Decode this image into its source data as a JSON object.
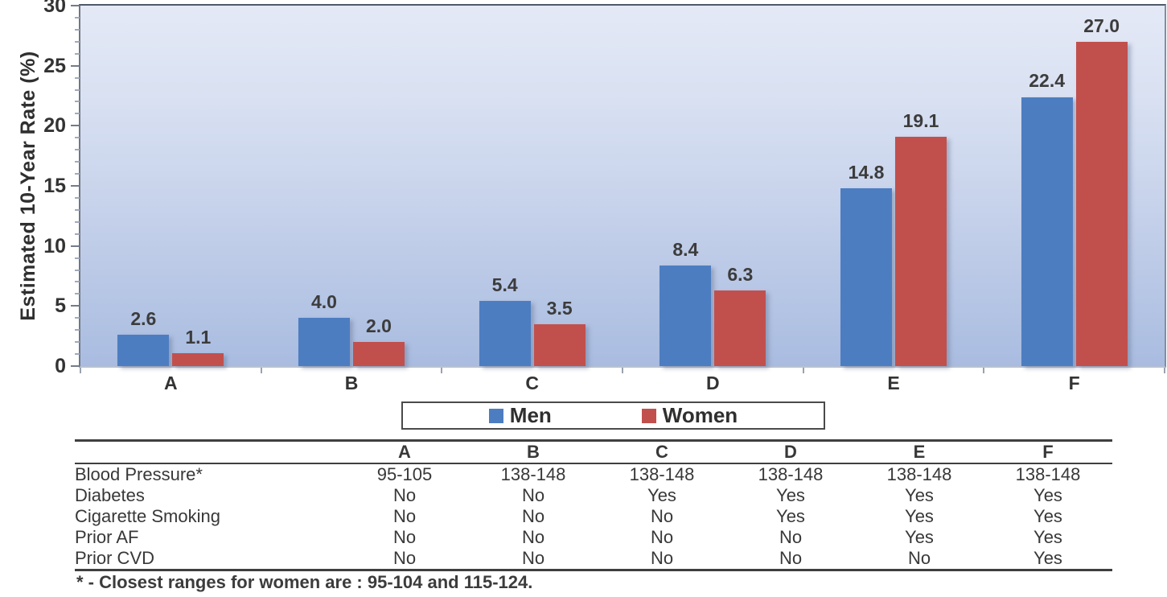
{
  "chart_data": {
    "type": "bar",
    "categories": [
      "A",
      "B",
      "C",
      "D",
      "E",
      "F"
    ],
    "series": [
      {
        "name": "Men",
        "color": "#4d7dc1",
        "values": [
          2.6,
          4.0,
          5.4,
          8.4,
          14.8,
          22.4
        ]
      },
      {
        "name": "Women",
        "color": "#c1504d",
        "values": [
          1.1,
          2.0,
          3.5,
          6.3,
          19.1,
          27.0
        ]
      }
    ],
    "title": "",
    "xlabel": "",
    "ylabel": "Estimated 10-Year Rate (%)",
    "ylim": [
      0,
      30
    ],
    "ytick_major_interval": 5,
    "ytick_minor_interval": 1,
    "ytick_labels": [
      "0",
      "5",
      "10",
      "15",
      "20",
      "25",
      "30"
    ],
    "grid": false,
    "legend_position": "bottom",
    "value_label_decimals": 1
  },
  "table": {
    "header": [
      "A",
      "B",
      "C",
      "D",
      "E",
      "F"
    ],
    "rows": [
      {
        "label": "Blood Pressure*",
        "values": [
          "95-105",
          "138-148",
          "138-148",
          "138-148",
          "138-148",
          "138-148"
        ]
      },
      {
        "label": "Diabetes",
        "values": [
          "No",
          "No",
          "Yes",
          "Yes",
          "Yes",
          "Yes"
        ]
      },
      {
        "label": "Cigarette Smoking",
        "values": [
          "No",
          "No",
          "No",
          "Yes",
          "Yes",
          "Yes"
        ]
      },
      {
        "label": "Prior AF",
        "values": [
          "No",
          "No",
          "No",
          "No",
          "Yes",
          "Yes"
        ]
      },
      {
        "label": "Prior CVD",
        "values": [
          "No",
          "No",
          "No",
          "No",
          "No",
          "Yes"
        ]
      }
    ]
  },
  "footnote": "* - Closest ranges for women are : 95-104 and 115-124.",
  "colors": {
    "men": "#4d7dc1",
    "women": "#c1504d",
    "text": "#3c3c3c",
    "plot_bg_top": "#e4e9f6",
    "plot_bg_bottom": "#a9bce0",
    "table_rule": "#3f3f3f"
  }
}
